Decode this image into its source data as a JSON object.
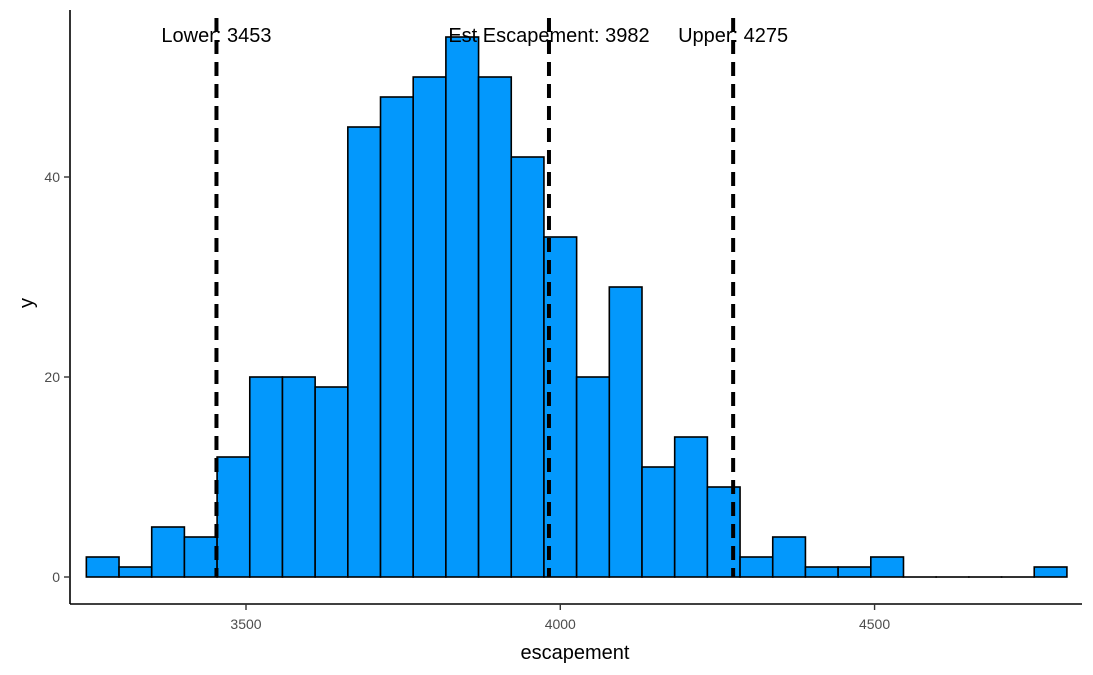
{
  "chart_data": {
    "type": "bar",
    "title": "",
    "xlabel": "escapement",
    "ylabel": "y",
    "xlim": [
      3220,
      4830
    ],
    "ylim": [
      -2.7,
      56.7
    ],
    "grid": false,
    "legend": "none",
    "bar_color": "#0398FC",
    "bar_outline": "#000000",
    "bin_width": 52,
    "bins": [
      {
        "x0": 3246,
        "x1": 3298,
        "count": 2
      },
      {
        "x0": 3298,
        "x1": 3350,
        "count": 1
      },
      {
        "x0": 3350,
        "x1": 3402,
        "count": 5
      },
      {
        "x0": 3402,
        "x1": 3454,
        "count": 4
      },
      {
        "x0": 3454,
        "x1": 3506,
        "count": 12
      },
      {
        "x0": 3506,
        "x1": 3558,
        "count": 20
      },
      {
        "x0": 3558,
        "x1": 3610,
        "count": 20
      },
      {
        "x0": 3610,
        "x1": 3662,
        "count": 19
      },
      {
        "x0": 3662,
        "x1": 3714,
        "count": 45
      },
      {
        "x0": 3714,
        "x1": 3766,
        "count": 48
      },
      {
        "x0": 3766,
        "x1": 3818,
        "count": 50
      },
      {
        "x0": 3818,
        "x1": 3870,
        "count": 54
      },
      {
        "x0": 3870,
        "x1": 3922,
        "count": 50
      },
      {
        "x0": 3922,
        "x1": 3974,
        "count": 42
      },
      {
        "x0": 3974,
        "x1": 4026,
        "count": 34
      },
      {
        "x0": 4026,
        "x1": 4078,
        "count": 20
      },
      {
        "x0": 4078,
        "x1": 4130,
        "count": 29
      },
      {
        "x0": 4130,
        "x1": 4182,
        "count": 11
      },
      {
        "x0": 4182,
        "x1": 4234,
        "count": 14
      },
      {
        "x0": 4234,
        "x1": 4286,
        "count": 9
      },
      {
        "x0": 4286,
        "x1": 4338,
        "count": 2
      },
      {
        "x0": 4338,
        "x1": 4390,
        "count": 4
      },
      {
        "x0": 4390,
        "x1": 4442,
        "count": 1
      },
      {
        "x0": 4442,
        "x1": 4494,
        "count": 1
      },
      {
        "x0": 4494,
        "x1": 4546,
        "count": 2
      },
      {
        "x0": 4546,
        "x1": 4598,
        "count": 0
      },
      {
        "x0": 4598,
        "x1": 4650,
        "count": 0
      },
      {
        "x0": 4650,
        "x1": 4702,
        "count": 0
      },
      {
        "x0": 4702,
        "x1": 4754,
        "count": 0
      },
      {
        "x0": 4754,
        "x1": 4806,
        "count": 1
      }
    ],
    "x_ticks": [
      3500,
      4000,
      4500
    ],
    "y_ticks": [
      0,
      20,
      40
    ],
    "reference_lines": [
      {
        "value": 3453,
        "label": "Lower: 3453"
      },
      {
        "value": 3982,
        "label": "Est Escapement: 3982"
      },
      {
        "value": 4275,
        "label": "Upper: 4275"
      }
    ],
    "label_y": 54.2
  }
}
